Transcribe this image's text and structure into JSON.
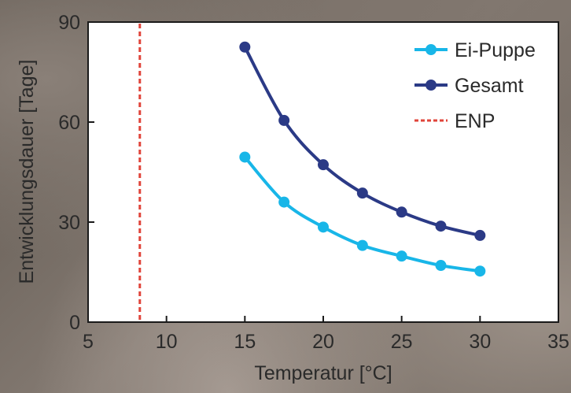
{
  "chart_data": {
    "type": "line",
    "xlabel": "Temperatur [°C]",
    "ylabel": "Entwicklungsdauer [Tage]",
    "xlim": [
      5,
      35
    ],
    "ylim": [
      0,
      90
    ],
    "xticks": [
      5,
      10,
      15,
      20,
      25,
      30,
      35
    ],
    "yticks": [
      0,
      30,
      60,
      90
    ],
    "grid": false,
    "legend_position": "top-right",
    "series": [
      {
        "name": "Ei-Puppe",
        "color": "#18b6e8",
        "x": [
          15,
          17.5,
          20,
          22.5,
          25,
          27.5,
          30
        ],
        "y": [
          49.5,
          36,
          28.5,
          23,
          19.8,
          17,
          15.3
        ]
      },
      {
        "name": "Gesamt",
        "color": "#2b3a86",
        "x": [
          15,
          17.5,
          20,
          22.5,
          25,
          27.5,
          30
        ],
        "y": [
          82.5,
          60.5,
          47.2,
          38.7,
          33,
          28.8,
          26
        ]
      }
    ],
    "reference_lines": [
      {
        "name": "ENP",
        "x": 8.3,
        "color": "#e0443a",
        "style": "dashed"
      }
    ]
  }
}
